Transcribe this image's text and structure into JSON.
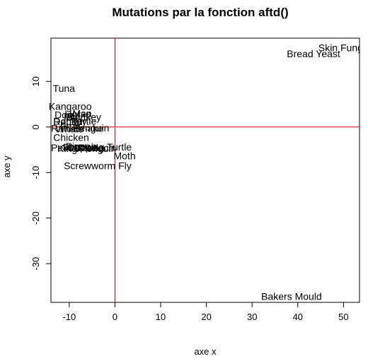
{
  "chart_data": {
    "type": "scatter",
    "title": "Mutations par la fonction aftd()",
    "xlabel": "axe x",
    "ylabel": "axe y",
    "xlim": [
      -14,
      53.5
    ],
    "ylim": [
      -38.5,
      19.5
    ],
    "x_ticks": [
      -10,
      0,
      10,
      20,
      30,
      40,
      50
    ],
    "y_ticks": [
      -30,
      -20,
      -10,
      0,
      10
    ],
    "reference_lines": {
      "x": 0,
      "y": 0,
      "color": "#d40000"
    },
    "points": [
      {
        "label": "Skin Fungus",
        "x": 44.5,
        "y": 17.4
      },
      {
        "label": "Bread Yeast",
        "x": 37.6,
        "y": 16.1
      },
      {
        "label": "Bakers Mould",
        "x": 32.0,
        "y": -37.2
      },
      {
        "label": "Tuna",
        "x": -13.6,
        "y": 8.5
      },
      {
        "label": "Kangaroo",
        "x": -14.5,
        "y": 4.5
      },
      {
        "label": "Dog",
        "x": -13.2,
        "y": 2.7
      },
      {
        "label": "Horse",
        "x": -11.0,
        "y": 2.9
      },
      {
        "label": "Pig",
        "x": -11.2,
        "y": 2.2
      },
      {
        "label": "Man",
        "x": -9.3,
        "y": 3.0
      },
      {
        "label": "Monkey",
        "x": -10.6,
        "y": 2.2
      },
      {
        "label": "Donkey",
        "x": -13.5,
        "y": 1.3
      },
      {
        "label": "Rabbit",
        "x": -13.5,
        "y": 1.2
      },
      {
        "label": "Turtle",
        "x": -9.5,
        "y": 1.3
      },
      {
        "label": "Frog",
        "x": -12.0,
        "y": 0.2
      },
      {
        "label": "Rattlesnake",
        "x": -14.0,
        "y": -0.3
      },
      {
        "label": "Whale",
        "x": -13.0,
        "y": -0.4
      },
      {
        "label": "Penguin",
        "x": -9.2,
        "y": -0.2
      },
      {
        "label": "Chicken",
        "x": -13.5,
        "y": -2.3
      },
      {
        "label": "Pekin Duck",
        "x": -14.0,
        "y": -4.5
      },
      {
        "label": "Pigeon",
        "x": -10.8,
        "y": -4.2
      },
      {
        "label": "King Penguin",
        "x": -12.6,
        "y": -4.7
      },
      {
        "label": "Snapping Turtle",
        "x": -11.5,
        "y": -4.4
      },
      {
        "label": "Mouse",
        "x": -9.0,
        "y": -4.5
      },
      {
        "label": "Cockroach",
        "x": -10.5,
        "y": -4.5
      },
      {
        "label": "Moth",
        "x": -0.3,
        "y": -6.3
      },
      {
        "label": "Screwworm Fly",
        "x": -11.2,
        "y": -8.5
      }
    ]
  }
}
